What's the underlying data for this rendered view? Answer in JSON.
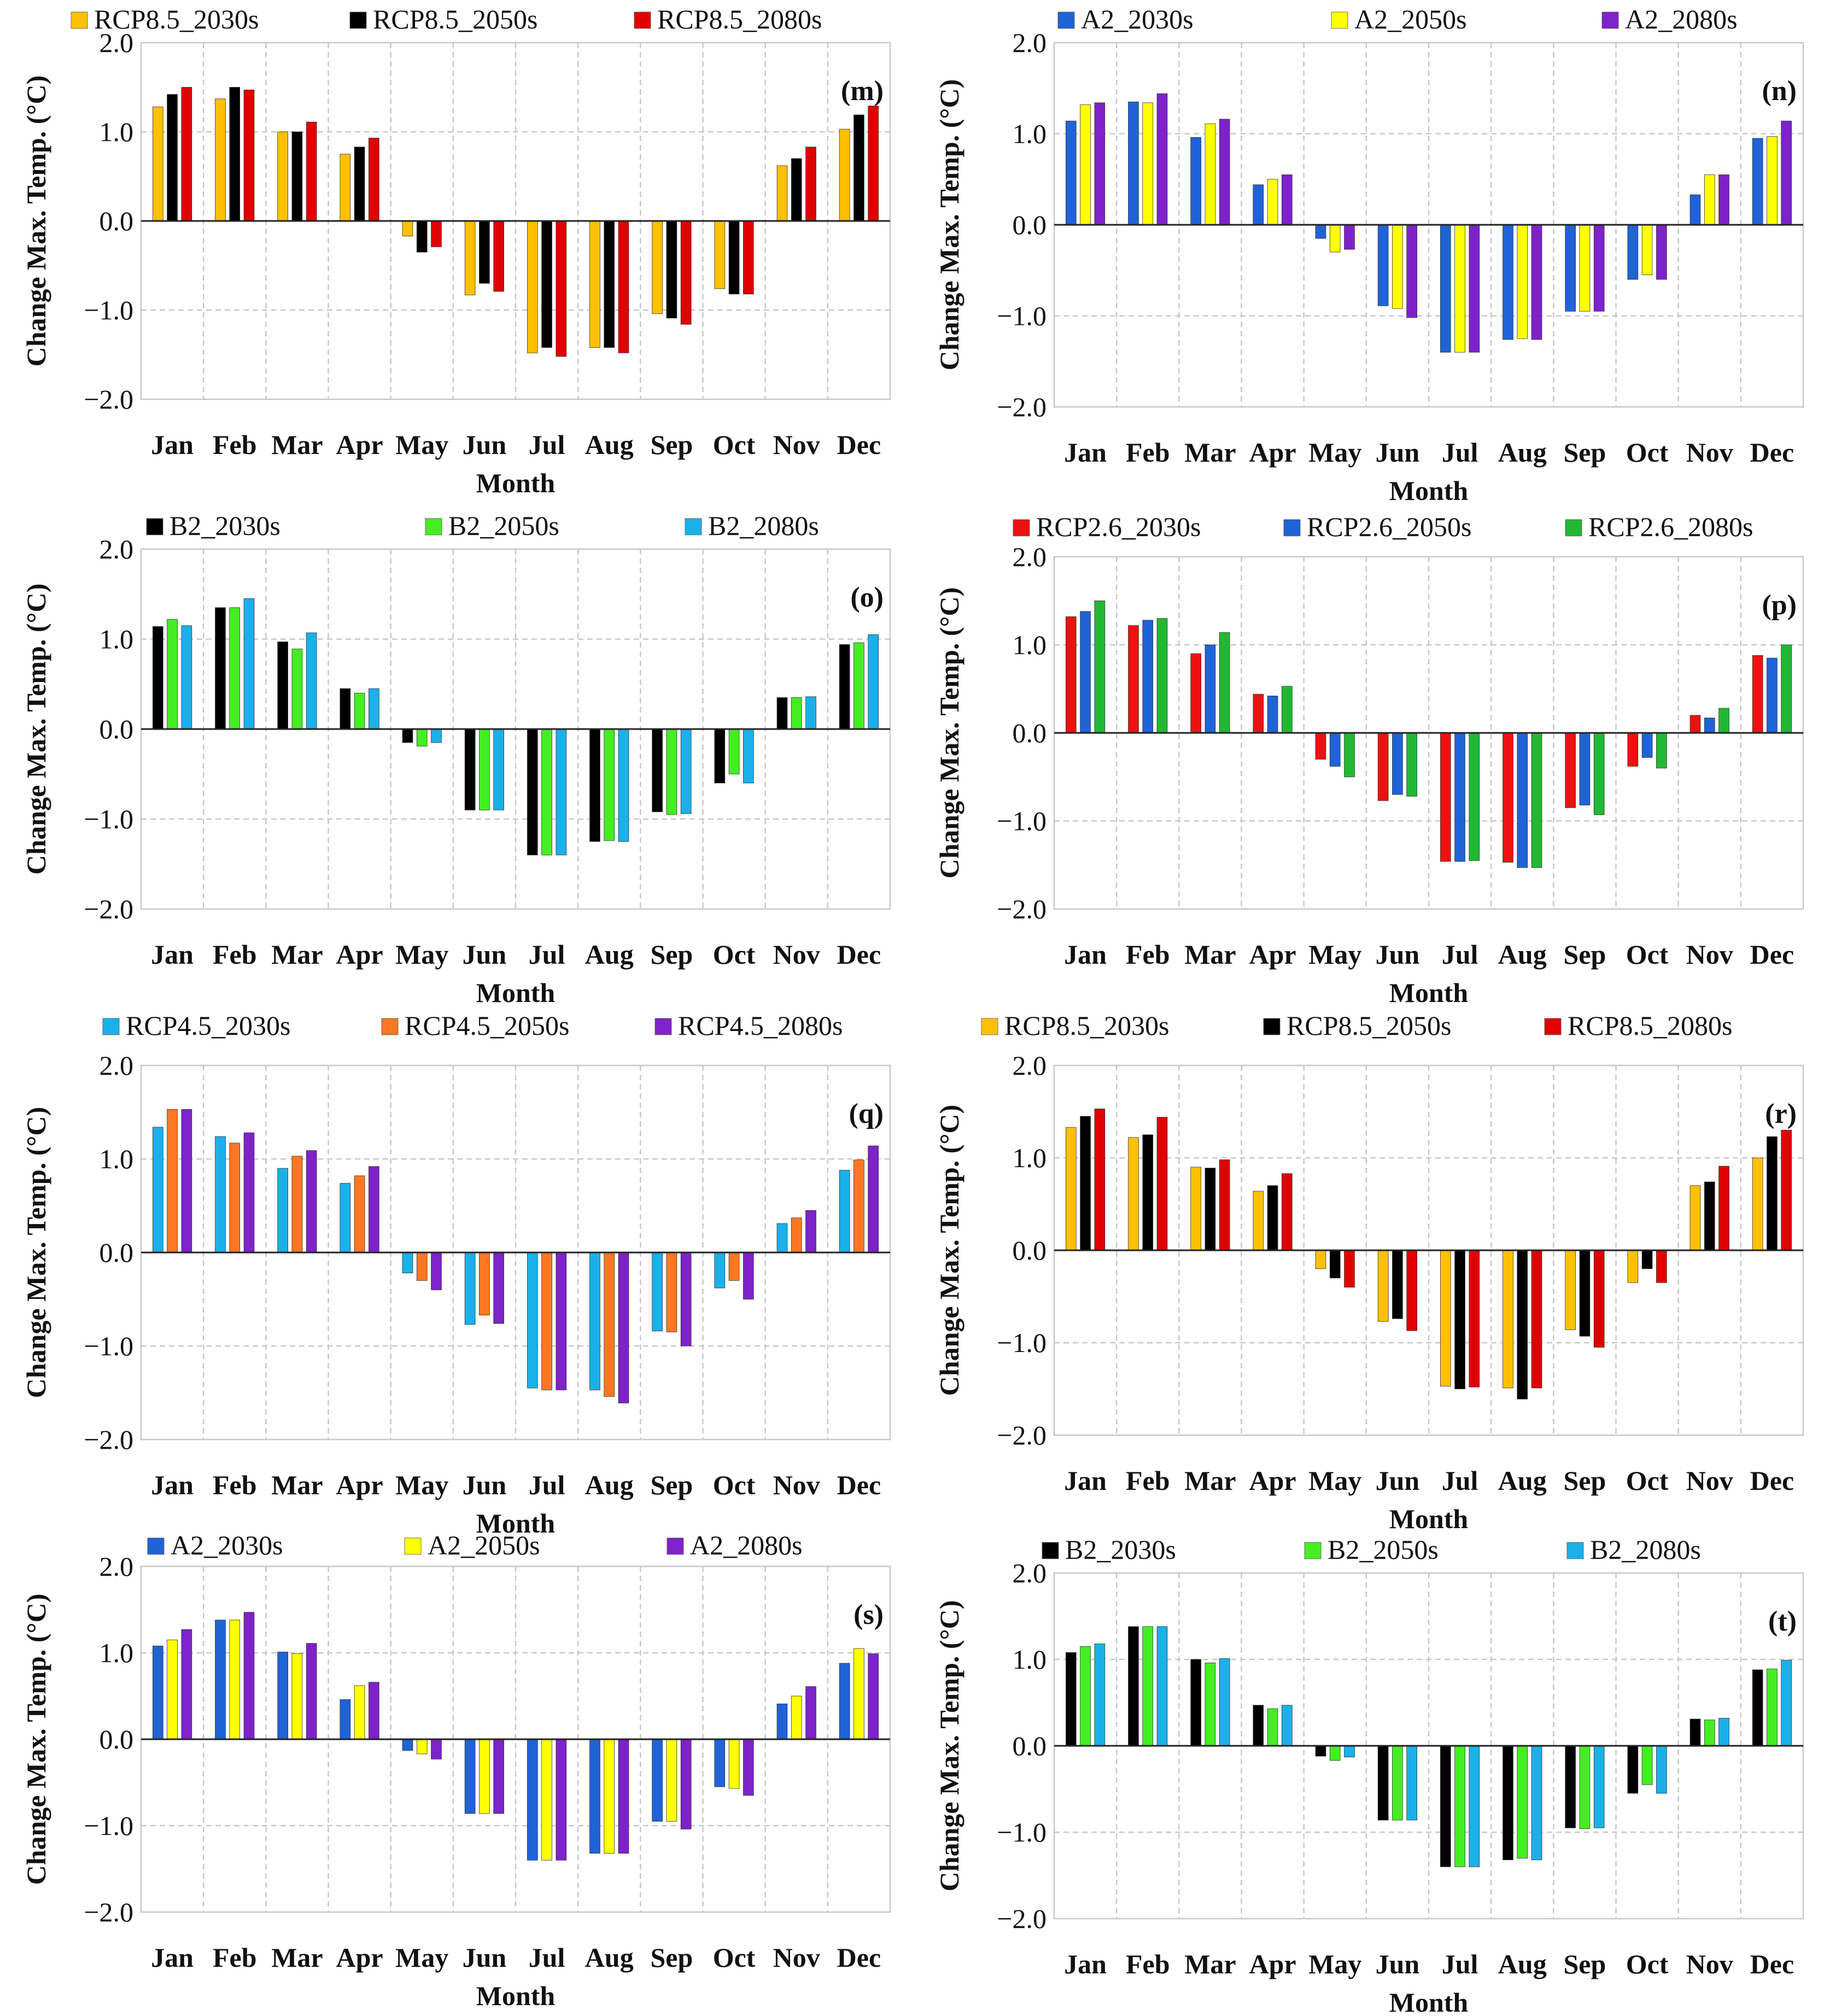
{
  "chart_data": [
    {
      "type": "bar",
      "panel": "(m)",
      "title": "",
      "xlabel": "Month",
      "ylabel": "Change Max. Temp. (°C)",
      "ylim": [
        -2.0,
        2.0
      ],
      "yticks": [
        "2.0",
        "1.0",
        "0.0",
        "−1.0",
        "−2.0"
      ],
      "categories": [
        "Jan",
        "Feb",
        "Mar",
        "Apr",
        "May",
        "Jun",
        "Jul",
        "Aug",
        "Sep",
        "Oct",
        "Nov",
        "Dec"
      ],
      "series": [
        {
          "name": "RCP8.5_2030s",
          "color": "#ffc000",
          "values": [
            1.28,
            1.37,
            1.0,
            0.75,
            -0.17,
            -0.83,
            -1.48,
            -1.42,
            -1.04,
            -0.76,
            0.62,
            1.03
          ]
        },
        {
          "name": "RCP8.5_2050s",
          "color": "#000000",
          "values": [
            1.42,
            1.5,
            1.0,
            0.83,
            -0.35,
            -0.7,
            -1.42,
            -1.42,
            -1.09,
            -0.82,
            0.7,
            1.19
          ]
        },
        {
          "name": "RCP8.5_2080s",
          "color": "#e00000",
          "values": [
            1.5,
            1.47,
            1.11,
            0.93,
            -0.29,
            -0.79,
            -1.52,
            -1.48,
            -1.16,
            -0.82,
            0.83,
            1.29
          ]
        }
      ]
    },
    {
      "type": "bar",
      "panel": "(n)",
      "title": "",
      "xlabel": "Month",
      "ylabel": "Change Max. Temp. (°C)",
      "ylim": [
        -2.0,
        2.0
      ],
      "yticks": [
        "2.0",
        "1.0",
        "0.0",
        "−1.0",
        "−2.0"
      ],
      "categories": [
        "Jan",
        "Feb",
        "Mar",
        "Apr",
        "May",
        "Jun",
        "Jul",
        "Aug",
        "Sep",
        "Oct",
        "Nov",
        "Dec"
      ],
      "series": [
        {
          "name": "A2_2030s",
          "color": "#1f63d6",
          "values": [
            1.14,
            1.35,
            0.96,
            0.44,
            -0.15,
            -0.89,
            -1.4,
            -1.26,
            -0.95,
            -0.6,
            0.33,
            0.95
          ]
        },
        {
          "name": "A2_2050s",
          "color": "#ffff00",
          "values": [
            1.32,
            1.34,
            1.11,
            0.5,
            -0.3,
            -0.92,
            -1.4,
            -1.25,
            -0.95,
            -0.55,
            0.55,
            0.97
          ]
        },
        {
          "name": "A2_2080s",
          "color": "#7e22c9",
          "values": [
            1.34,
            1.44,
            1.16,
            0.55,
            -0.27,
            -1.02,
            -1.4,
            -1.26,
            -0.95,
            -0.6,
            0.55,
            1.14
          ]
        }
      ]
    },
    {
      "type": "bar",
      "panel": "(o)",
      "title": "",
      "xlabel": "Month",
      "ylabel": "Change Max. Temp. (°C)",
      "ylim": [
        -2.0,
        2.0
      ],
      "yticks": [
        "2.0",
        "1.0",
        "0.0",
        "−1.0",
        "−2.0"
      ],
      "categories": [
        "Jan",
        "Feb",
        "Mar",
        "Apr",
        "May",
        "Jun",
        "Jul",
        "Aug",
        "Sep",
        "Oct",
        "Nov",
        "Dec"
      ],
      "series": [
        {
          "name": "B2_2030s",
          "color": "#000000",
          "values": [
            1.14,
            1.35,
            0.97,
            0.45,
            -0.15,
            -0.9,
            -1.4,
            -1.25,
            -0.92,
            -0.6,
            0.35,
            0.94
          ]
        },
        {
          "name": "B2_2050s",
          "color": "#44ee22",
          "values": [
            1.22,
            1.35,
            0.89,
            0.4,
            -0.19,
            -0.9,
            -1.4,
            -1.24,
            -0.95,
            -0.5,
            0.35,
            0.96
          ]
        },
        {
          "name": "B2_2080s",
          "color": "#1bb0ea",
          "values": [
            1.15,
            1.45,
            1.07,
            0.45,
            -0.15,
            -0.9,
            -1.4,
            -1.25,
            -0.94,
            -0.6,
            0.36,
            1.05
          ]
        }
      ]
    },
    {
      "type": "bar",
      "panel": "(p)",
      "title": "",
      "xlabel": "Month",
      "ylabel": "Change Max. Temp. (°C)",
      "ylim": [
        -2.0,
        2.0
      ],
      "yticks": [
        "2.0",
        "1.0",
        "0.0",
        "−1.0",
        "−2.0"
      ],
      "categories": [
        "Jan",
        "Feb",
        "Mar",
        "Apr",
        "May",
        "Jun",
        "Jul",
        "Aug",
        "Sep",
        "Oct",
        "Nov",
        "Dec"
      ],
      "series": [
        {
          "name": "RCP2.6_2030s",
          "color": "#ee1111",
          "values": [
            1.32,
            1.22,
            0.9,
            0.44,
            -0.3,
            -0.77,
            -1.46,
            -1.47,
            -0.85,
            -0.38,
            0.2,
            0.88
          ]
        },
        {
          "name": "RCP2.6_2050s",
          "color": "#1f63d6",
          "values": [
            1.38,
            1.28,
            1.0,
            0.42,
            -0.38,
            -0.7,
            -1.46,
            -1.53,
            -0.82,
            -0.28,
            0.17,
            0.85
          ]
        },
        {
          "name": "RCP2.6_2080s",
          "color": "#22b833",
          "values": [
            1.5,
            1.3,
            1.14,
            0.53,
            -0.5,
            -0.72,
            -1.45,
            -1.53,
            -0.93,
            -0.4,
            0.28,
            1.0
          ]
        }
      ]
    },
    {
      "type": "bar",
      "panel": "(q)",
      "title": "",
      "xlabel": "Month",
      "ylabel": "Change Max. Temp. (°C)",
      "ylim": [
        -2.0,
        2.0
      ],
      "yticks": [
        "2.0",
        "1.0",
        "0.0",
        "−1.0",
        "−2.0"
      ],
      "categories": [
        "Jan",
        "Feb",
        "Mar",
        "Apr",
        "May",
        "Jun",
        "Jul",
        "Aug",
        "Sep",
        "Oct",
        "Nov",
        "Dec"
      ],
      "series": [
        {
          "name": "RCP4.5_2030s",
          "color": "#1bb0ea",
          "values": [
            1.34,
            1.24,
            0.9,
            0.74,
            -0.22,
            -0.77,
            -1.45,
            -1.47,
            -0.84,
            -0.38,
            0.31,
            0.88
          ]
        },
        {
          "name": "RCP4.5_2050s",
          "color": "#ff7722",
          "values": [
            1.53,
            1.17,
            1.03,
            0.82,
            -0.3,
            -0.67,
            -1.47,
            -1.54,
            -0.85,
            -0.3,
            0.37,
            0.99
          ]
        },
        {
          "name": "RCP4.5_2080s",
          "color": "#7e22c9",
          "values": [
            1.53,
            1.28,
            1.09,
            0.92,
            -0.4,
            -0.76,
            -1.47,
            -1.61,
            -1.0,
            -0.5,
            0.45,
            1.14
          ]
        }
      ]
    },
    {
      "type": "bar",
      "panel": "(r)",
      "title": "",
      "xlabel": "Month",
      "ylabel": "Change Max. Temp. (°C)",
      "ylim": [
        -2.0,
        2.0
      ],
      "yticks": [
        "2.0",
        "1.0",
        "0.0",
        "−1.0",
        "−2.0"
      ],
      "categories": [
        "Jan",
        "Feb",
        "Mar",
        "Apr",
        "May",
        "Jun",
        "Jul",
        "Aug",
        "Sep",
        "Oct",
        "Nov",
        "Dec"
      ],
      "series": [
        {
          "name": "RCP8.5_2030s",
          "color": "#ffc000",
          "values": [
            1.33,
            1.22,
            0.9,
            0.64,
            -0.2,
            -0.77,
            -1.47,
            -1.49,
            -0.86,
            -0.35,
            0.7,
            1.0
          ]
        },
        {
          "name": "RCP8.5_2050s",
          "color": "#000000",
          "values": [
            1.45,
            1.25,
            0.89,
            0.7,
            -0.3,
            -0.74,
            -1.5,
            -1.61,
            -0.93,
            -0.2,
            0.74,
            1.23
          ]
        },
        {
          "name": "RCP8.5_2080s",
          "color": "#e00000",
          "values": [
            1.53,
            1.44,
            0.98,
            0.83,
            -0.4,
            -0.87,
            -1.48,
            -1.49,
            -1.05,
            -0.35,
            0.91,
            1.3
          ]
        }
      ]
    },
    {
      "type": "bar",
      "panel": "(s)",
      "title": "",
      "xlabel": "Month",
      "ylabel": "Change Max. Temp. (°C)",
      "ylim": [
        -2.0,
        2.0
      ],
      "yticks": [
        "2.0",
        "1.0",
        "0.0",
        "−1.0",
        "−2.0"
      ],
      "categories": [
        "Jan",
        "Feb",
        "Mar",
        "Apr",
        "May",
        "Jun",
        "Jul",
        "Aug",
        "Sep",
        "Oct",
        "Nov",
        "Dec"
      ],
      "series": [
        {
          "name": "A2_2030s",
          "color": "#1f63d6",
          "values": [
            1.08,
            1.38,
            1.01,
            0.46,
            -0.13,
            -0.86,
            -1.4,
            -1.32,
            -0.95,
            -0.55,
            0.41,
            0.88
          ]
        },
        {
          "name": "A2_2050s",
          "color": "#ffff00",
          "values": [
            1.15,
            1.38,
            0.99,
            0.62,
            -0.17,
            -0.86,
            -1.4,
            -1.32,
            -0.95,
            -0.57,
            0.5,
            1.05
          ]
        },
        {
          "name": "A2_2080s",
          "color": "#7e22c9",
          "values": [
            1.27,
            1.47,
            1.11,
            0.66,
            -0.23,
            -0.86,
            -1.4,
            -1.32,
            -1.04,
            -0.65,
            0.61,
            0.99
          ]
        }
      ]
    },
    {
      "type": "bar",
      "panel": "(t)",
      "title": "",
      "xlabel": "Month",
      "ylabel": "Change Max. Temp. (°C)",
      "ylim": [
        -2.0,
        2.0
      ],
      "yticks": [
        "2.0",
        "1.0",
        "0.0",
        "−1.0",
        "−2.0"
      ],
      "categories": [
        "Jan",
        "Feb",
        "Mar",
        "Apr",
        "May",
        "Jun",
        "Jul",
        "Aug",
        "Sep",
        "Oct",
        "Nov",
        "Dec"
      ],
      "series": [
        {
          "name": "B2_2030s",
          "color": "#000000",
          "values": [
            1.08,
            1.38,
            1.0,
            0.47,
            -0.12,
            -0.86,
            -1.4,
            -1.32,
            -0.95,
            -0.55,
            0.31,
            0.88
          ]
        },
        {
          "name": "B2_2050s",
          "color": "#44ee22",
          "values": [
            1.15,
            1.38,
            0.96,
            0.43,
            -0.17,
            -0.86,
            -1.4,
            -1.3,
            -0.96,
            -0.45,
            0.3,
            0.89
          ]
        },
        {
          "name": "B2_2080s",
          "color": "#1bb0ea",
          "values": [
            1.18,
            1.38,
            1.01,
            0.47,
            -0.13,
            -0.86,
            -1.4,
            -1.32,
            -0.95,
            -0.55,
            0.32,
            0.99
          ]
        }
      ]
    }
  ]
}
